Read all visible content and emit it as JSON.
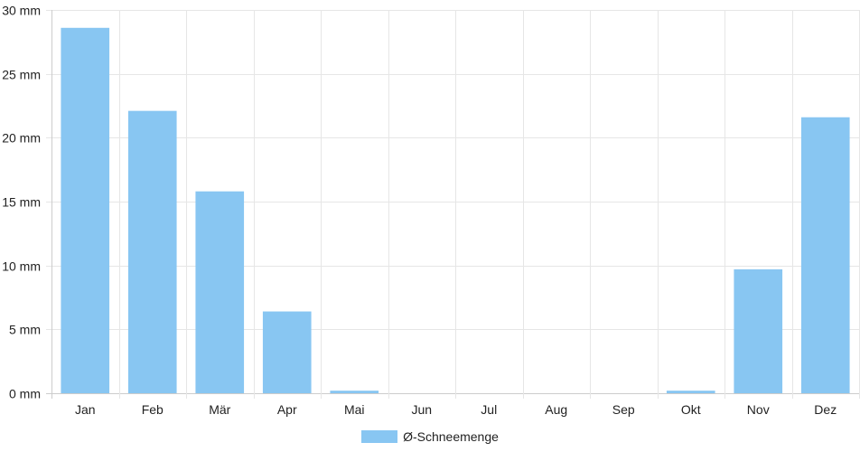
{
  "chart_data": {
    "type": "bar",
    "categories": [
      "Jan",
      "Feb",
      "Mär",
      "Apr",
      "Mai",
      "Jun",
      "Jul",
      "Aug",
      "Sep",
      "Okt",
      "Nov",
      "Dez"
    ],
    "series": [
      {
        "name": "Ø-Schneemenge",
        "values": [
          28.6,
          22.1,
          15.8,
          6.4,
          0.2,
          0,
          0,
          0,
          0,
          0.2,
          9.7,
          21.6
        ]
      }
    ],
    "y_ticks": [
      "0 mm",
      "5 mm",
      "10 mm",
      "15 mm",
      "20 mm",
      "25 mm",
      "30 mm"
    ],
    "ylim": [
      0,
      30
    ],
    "grid": true,
    "legend_position": "bottom",
    "colors": {
      "bar": "#88c6f2",
      "grid": "#e6e6e6",
      "axis": "#cccccc"
    }
  }
}
